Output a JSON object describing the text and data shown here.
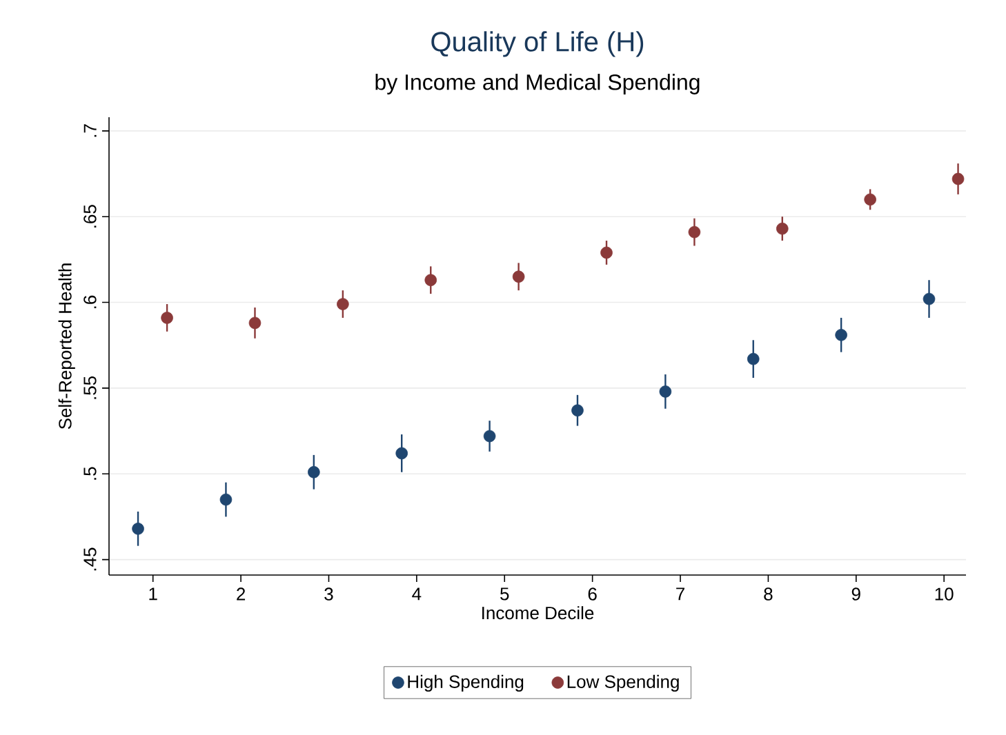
{
  "chart_data": {
    "type": "scatter",
    "title": "Quality of Life (H)",
    "subtitle": "by Income and Medical Spending",
    "xlabel": "Income Decile",
    "ylabel": "Self-Reported Health",
    "xlim": [
      0.5,
      10.25
    ],
    "ylim": [
      0.441,
      0.708
    ],
    "xticks": [
      1,
      2,
      3,
      4,
      5,
      6,
      7,
      8,
      9,
      10
    ],
    "yticks": [
      {
        "value": 0.45,
        "label": ".45"
      },
      {
        "value": 0.5,
        "label": ".5"
      },
      {
        "value": 0.55,
        "label": ".55"
      },
      {
        "value": 0.6,
        "label": ".6"
      },
      {
        "value": 0.65,
        "label": ".65"
      },
      {
        "value": 0.7,
        "label": ".7"
      }
    ],
    "grid": "y",
    "legend": "bottom",
    "marker": "circle",
    "series": [
      {
        "name": "High Spending",
        "color": "#1f4670",
        "x": [
          0.83,
          1.83,
          2.83,
          3.83,
          4.83,
          5.83,
          6.83,
          7.83,
          8.83,
          9.83
        ],
        "values": [
          0.468,
          0.485,
          0.501,
          0.512,
          0.522,
          0.537,
          0.548,
          0.567,
          0.581,
          0.602
        ],
        "errors": [
          0.01,
          0.01,
          0.01,
          0.011,
          0.009,
          0.009,
          0.01,
          0.011,
          0.01,
          0.011
        ]
      },
      {
        "name": "Low Spending",
        "color": "#8b3a3a",
        "x": [
          1.16,
          2.16,
          3.16,
          4.16,
          5.16,
          6.16,
          7.16,
          8.16,
          9.16,
          10.16
        ],
        "values": [
          0.591,
          0.588,
          0.599,
          0.613,
          0.615,
          0.629,
          0.641,
          0.643,
          0.66,
          0.672
        ],
        "errors": [
          0.008,
          0.009,
          0.008,
          0.008,
          0.008,
          0.007,
          0.008,
          0.007,
          0.006,
          0.009
        ]
      }
    ]
  }
}
